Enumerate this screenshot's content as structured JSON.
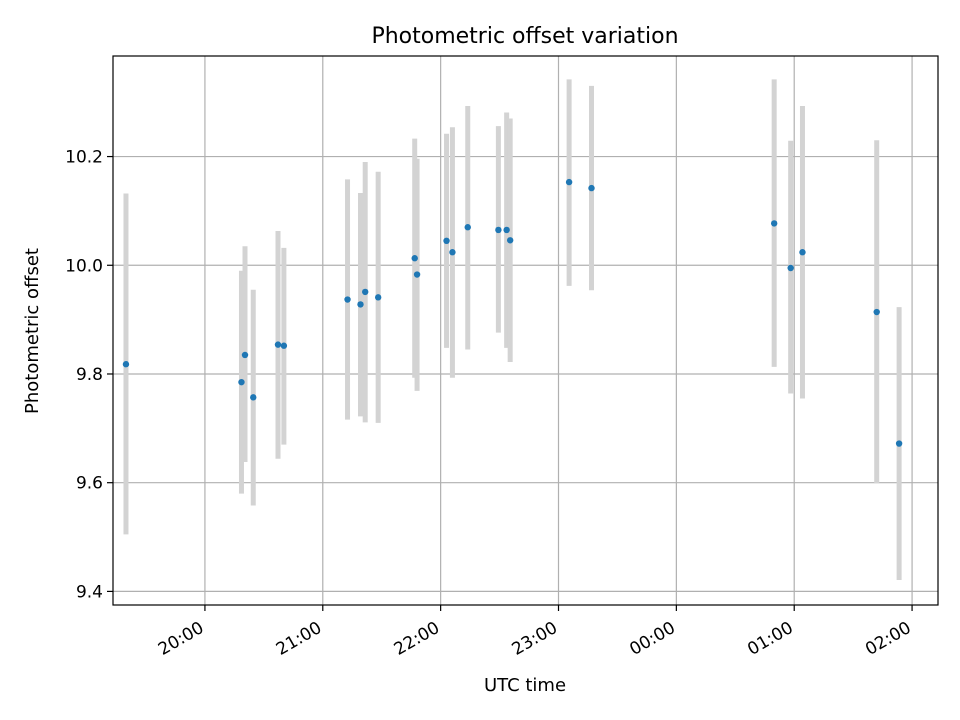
{
  "chart_data": {
    "type": "scatter",
    "title": "Photometric offset variation",
    "xlabel": "UTC time",
    "ylabel": "Photometric offset",
    "x_unit": "hours UTC (values past 24 are after midnight, next day)",
    "xlim": [
      19.22,
      26.22
    ],
    "ylim": [
      9.375,
      10.385
    ],
    "x_ticks": [
      {
        "value": 20,
        "label": "20:00"
      },
      {
        "value": 21,
        "label": "21:00"
      },
      {
        "value": 22,
        "label": "22:00"
      },
      {
        "value": 23,
        "label": "23:00"
      },
      {
        "value": 24,
        "label": "00:00"
      },
      {
        "value": 25,
        "label": "01:00"
      },
      {
        "value": 26,
        "label": "02:00"
      }
    ],
    "y_ticks": [
      {
        "value": 9.4,
        "label": "9.4"
      },
      {
        "value": 9.6,
        "label": "9.6"
      },
      {
        "value": 9.8,
        "label": "9.8"
      },
      {
        "value": 10.0,
        "label": "10.0"
      },
      {
        "value": 10.2,
        "label": "10.2"
      }
    ],
    "grid": true,
    "colors": {
      "point": "#1f77b4",
      "errorbar": "#d3d3d3",
      "grid": "#b0b0b0"
    },
    "points": [
      {
        "x": 19.33,
        "y": 9.818,
        "lo": 9.505,
        "hi": 10.132
      },
      {
        "x": 20.31,
        "y": 9.785,
        "lo": 9.58,
        "hi": 9.99
      },
      {
        "x": 20.34,
        "y": 9.835,
        "lo": 9.638,
        "hi": 10.035
      },
      {
        "x": 20.41,
        "y": 9.757,
        "lo": 9.558,
        "hi": 9.955
      },
      {
        "x": 20.62,
        "y": 9.854,
        "lo": 9.644,
        "hi": 10.063
      },
      {
        "x": 20.67,
        "y": 9.852,
        "lo": 9.67,
        "hi": 10.032
      },
      {
        "x": 21.21,
        "y": 9.937,
        "lo": 9.716,
        "hi": 10.158
      },
      {
        "x": 21.32,
        "y": 9.928,
        "lo": 9.722,
        "hi": 10.133
      },
      {
        "x": 21.36,
        "y": 9.951,
        "lo": 9.711,
        "hi": 10.19
      },
      {
        "x": 21.47,
        "y": 9.941,
        "lo": 9.71,
        "hi": 10.172
      },
      {
        "x": 21.78,
        "y": 10.013,
        "lo": 9.793,
        "hi": 10.233
      },
      {
        "x": 21.8,
        "y": 9.983,
        "lo": 9.769,
        "hi": 10.196
      },
      {
        "x": 22.05,
        "y": 10.045,
        "lo": 9.848,
        "hi": 10.242
      },
      {
        "x": 22.1,
        "y": 10.024,
        "lo": 9.793,
        "hi": 10.254
      },
      {
        "x": 22.23,
        "y": 10.07,
        "lo": 9.845,
        "hi": 10.293
      },
      {
        "x": 22.49,
        "y": 10.065,
        "lo": 9.876,
        "hi": 10.256
      },
      {
        "x": 22.56,
        "y": 10.065,
        "lo": 9.848,
        "hi": 10.281
      },
      {
        "x": 22.59,
        "y": 10.046,
        "lo": 9.822,
        "hi": 10.27
      },
      {
        "x": 23.09,
        "y": 10.153,
        "lo": 9.962,
        "hi": 10.342
      },
      {
        "x": 23.28,
        "y": 10.142,
        "lo": 9.954,
        "hi": 10.33
      },
      {
        "x": 24.83,
        "y": 10.077,
        "lo": 9.813,
        "hi": 10.342
      },
      {
        "x": 24.97,
        "y": 9.995,
        "lo": 9.764,
        "hi": 10.229
      },
      {
        "x": 25.07,
        "y": 10.024,
        "lo": 9.755,
        "hi": 10.293
      },
      {
        "x": 25.7,
        "y": 9.914,
        "lo": 9.599,
        "hi": 10.23
      },
      {
        "x": 25.89,
        "y": 9.672,
        "lo": 9.421,
        "hi": 9.923
      }
    ]
  }
}
